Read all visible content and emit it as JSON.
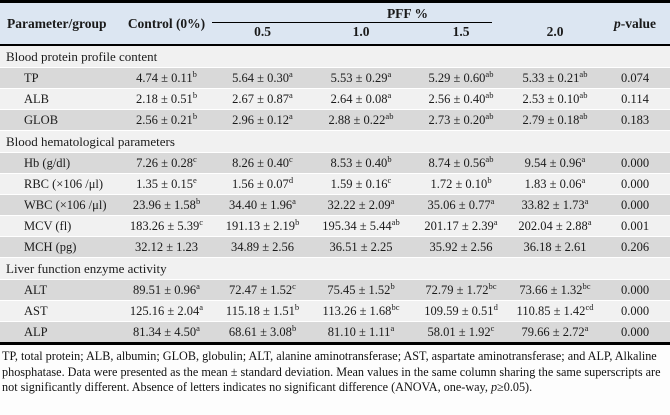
{
  "header": {
    "parameter_group": "Parameter/group",
    "control": "Control (0%)",
    "pff": "PFF %",
    "levels": [
      "0.5",
      "1.0",
      "1.5",
      "2.0"
    ],
    "p_italic": "p",
    "p_rest": "-value"
  },
  "table": {
    "sections": [
      {
        "label": "Blood protein profile content",
        "rows": [
          {
            "param": "TP",
            "cells": [
              {
                "value": "4.74 ± 0.11",
                "sup": "b"
              },
              {
                "value": "5.64 ± 0.30",
                "sup": "a"
              },
              {
                "value": "5.53 ± 0.29",
                "sup": "a"
              },
              {
                "value": "5.29 ± 0.60",
                "sup": "ab"
              },
              {
                "value": "5.33 ± 0.21",
                "sup": "ab"
              }
            ],
            "p": "0.074"
          },
          {
            "param": "ALB",
            "cells": [
              {
                "value": "2.18 ± 0.51",
                "sup": "b"
              },
              {
                "value": "2.67 ± 0.87",
                "sup": "a"
              },
              {
                "value": "2.64 ± 0.08",
                "sup": "a"
              },
              {
                "value": "2.56 ± 0.40",
                "sup": "ab"
              },
              {
                "value": "2.53 ± 0.10",
                "sup": "ab"
              }
            ],
            "p": "0.114"
          },
          {
            "param": "GLOB",
            "cells": [
              {
                "value": "2.56 ± 0.21",
                "sup": "b"
              },
              {
                "value": "2.96 ± 0.12",
                "sup": "a"
              },
              {
                "value": "2.88 ± 0.22",
                "sup": "ab"
              },
              {
                "value": "2.73 ± 0.20",
                "sup": "ab"
              },
              {
                "value": "2.79 ± 0.18",
                "sup": "ab"
              }
            ],
            "p": "0.183"
          }
        ]
      },
      {
        "label": "Blood hematological parameters",
        "rows": [
          {
            "param": "Hb (g/dl)",
            "cells": [
              {
                "value": "7.26 ± 0.28",
                "sup": "c"
              },
              {
                "value": "8.26 ± 0.40",
                "sup": "c"
              },
              {
                "value": "8.53 ± 0.40",
                "sup": "b"
              },
              {
                "value": "8.74 ± 0.56",
                "sup": "ab"
              },
              {
                "value": "9.54 ± 0.96",
                "sup": "a"
              }
            ],
            "p": "0.000"
          },
          {
            "param": "RBC (×106 /μl)",
            "cells": [
              {
                "value": "1.35 ± 0.15",
                "sup": "e"
              },
              {
                "value": "1.56 ± 0.07",
                "sup": "d"
              },
              {
                "value": "1.59 ± 0.16",
                "sup": "c"
              },
              {
                "value": "1.72 ± 0.10",
                "sup": "b"
              },
              {
                "value": "1.83 ± 0.06",
                "sup": "a"
              }
            ],
            "p": "0.000"
          },
          {
            "param": "WBC (×106 /μl)",
            "cells": [
              {
                "value": "23.96 ± 1.58",
                "sup": "b"
              },
              {
                "value": "34.40 ± 1.96",
                "sup": "a"
              },
              {
                "value": "32.22 ± 2.09",
                "sup": "a"
              },
              {
                "value": "35.06 ± 0.77",
                "sup": "a"
              },
              {
                "value": "33.82 ± 1.73",
                "sup": "a"
              }
            ],
            "p": "0.000"
          },
          {
            "param": "MCV (fl)",
            "cells": [
              {
                "value": "183.26 ± 5.39",
                "sup": "c"
              },
              {
                "value": "191.13 ± 2.19",
                "sup": "b"
              },
              {
                "value": "195.34 ± 5.44",
                "sup": "ab"
              },
              {
                "value": "201.17 ± 2.39",
                "sup": "a"
              },
              {
                "value": "202.04 ± 2.88",
                "sup": "a"
              }
            ],
            "p": "0.001"
          },
          {
            "param": "MCH (pg)",
            "cells": [
              {
                "value": "32.12 ± 1.23",
                "sup": ""
              },
              {
                "value": "34.89 ± 2.56",
                "sup": ""
              },
              {
                "value": "36.51 ± 2.25",
                "sup": ""
              },
              {
                "value": "35.92 ± 2.56",
                "sup": ""
              },
              {
                "value": "36.18 ± 2.61",
                "sup": ""
              }
            ],
            "p": "0.206"
          }
        ]
      },
      {
        "label": "Liver function enzyme activity",
        "rows": [
          {
            "param": "ALT",
            "cells": [
              {
                "value": "89.51 ± 0.96",
                "sup": "a"
              },
              {
                "value": "72.47 ± 1.52",
                "sup": "c"
              },
              {
                "value": "75.45 ± 1.52",
                "sup": "b"
              },
              {
                "value": "72.79 ± 1.72",
                "sup": "bc"
              },
              {
                "value": "73.66 ± 1.32",
                "sup": "bc"
              }
            ],
            "p": "0.000"
          },
          {
            "param": "AST",
            "cells": [
              {
                "value": "125.16 ± 2.04",
                "sup": "a"
              },
              {
                "value": "115.18 ± 1.51",
                "sup": "b"
              },
              {
                "value": "113.26 ± 1.68",
                "sup": "bc"
              },
              {
                "value": "109.59 ± 0.51",
                "sup": "d"
              },
              {
                "value": "110.85 ± 1.42",
                "sup": "cd"
              }
            ],
            "p": "0.000"
          },
          {
            "param": "ALP",
            "cells": [
              {
                "value": "81.34 ± 4.50",
                "sup": "a"
              },
              {
                "value": "68.61 ± 3.08",
                "sup": "b"
              },
              {
                "value": "81.10 ± 1.11",
                "sup": "a"
              },
              {
                "value": "58.01 ± 1.92",
                "sup": "c"
              },
              {
                "value": "79.66 ± 2.72",
                "sup": "a"
              }
            ],
            "p": "0.000"
          }
        ]
      }
    ]
  },
  "footnote": {
    "part1": "TP, total protein; ALB, albumin; GLOB, globulin; ALT, alanine aminotransferase; AST, aspartate aminotransferase; and ALP, Alkaline phosphatase. Data were presented as the mean ± standard deviation. Mean values in the same column sharing the same superscripts are not significantly different. Absence of letters indicates no significant difference (ANOVA, one-way, ",
    "p_italic": "p",
    "part2": "≥0.05)."
  }
}
